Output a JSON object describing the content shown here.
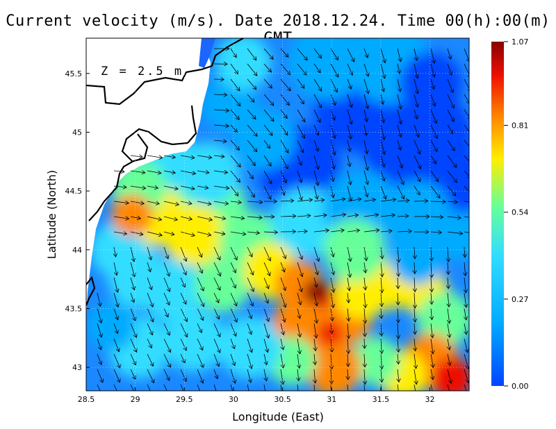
{
  "title": "Current velocity (m/s). Date 2018.12.24. Time 00(h):00(m) GMT",
  "depth_label": "Z = 2.5 m",
  "x_axis": {
    "label": "Longitude (East)",
    "ticks": [
      "28.5",
      "29",
      "29.5",
      "30",
      "30.5",
      "31",
      "31.5",
      "32"
    ],
    "range": [
      28.5,
      32.4
    ]
  },
  "y_axis": {
    "label": "Latitude (North)",
    "ticks": [
      "43",
      "43.5",
      "44",
      "44.5",
      "45",
      "45.5"
    ],
    "range": [
      42.8,
      45.8
    ]
  },
  "colorbar": {
    "ticks": [
      "0.00",
      "0.27",
      "0.54",
      "0.81",
      "1.07"
    ],
    "min": 0.0,
    "max": 1.07,
    "colors": [
      "#0044ff",
      "#00aaff",
      "#33ddff",
      "#66ff99",
      "#ffee00",
      "#ff8800",
      "#ee1100",
      "#880000"
    ]
  },
  "chart_data": {
    "type": "heatmap",
    "title": "Current velocity (m/s). Date 2018.12.24. Time 00(h):00(m) GMT",
    "xlabel": "Longitude (East)",
    "ylabel": "Latitude (North)",
    "xlim": [
      28.5,
      32.4
    ],
    "ylim": [
      42.8,
      45.8
    ],
    "value_range": [
      0.0,
      1.07
    ],
    "grid": true
  }
}
